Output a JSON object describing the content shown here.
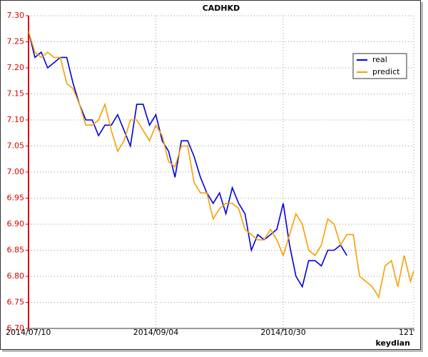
{
  "chart_data": {
    "type": "line",
    "title": "CADHKD",
    "watermark": "keydian",
    "x": [
      0,
      2,
      4,
      6,
      8,
      10,
      12,
      14,
      16,
      18,
      20,
      22,
      24,
      26,
      28,
      30,
      32,
      34,
      36,
      38,
      40,
      42,
      44,
      46,
      48,
      50,
      52,
      54,
      56,
      58,
      60,
      62,
      64,
      66,
      68,
      70,
      72,
      74,
      76,
      78,
      80,
      82,
      84,
      86,
      88,
      90,
      92,
      94,
      96,
      98,
      100,
      102,
      104,
      106,
      108,
      110,
      112,
      114,
      116,
      118,
      120,
      121
    ],
    "series": [
      {
        "name": "real",
        "color": "#0000dd",
        "values": [
          7.27,
          7.22,
          7.23,
          7.2,
          7.21,
          7.22,
          7.22,
          7.17,
          7.13,
          7.1,
          7.1,
          7.07,
          7.09,
          7.09,
          7.11,
          7.08,
          7.05,
          7.13,
          7.13,
          7.09,
          7.11,
          7.06,
          7.04,
          6.99,
          7.06,
          7.06,
          7.03,
          6.99,
          6.96,
          6.94,
          6.96,
          6.92,
          6.97,
          6.94,
          6.92,
          6.85,
          6.88,
          6.87,
          6.88,
          6.89,
          6.94,
          6.86,
          6.8,
          6.78,
          6.83,
          6.83,
          6.82,
          6.85,
          6.85,
          6.86,
          6.84,
          null,
          null,
          null,
          null,
          null,
          null,
          null,
          null,
          null,
          null,
          null
        ]
      },
      {
        "name": "predict",
        "color": "#f5a000",
        "values": [
          7.27,
          7.23,
          7.22,
          7.23,
          7.22,
          7.22,
          7.17,
          7.16,
          7.13,
          7.09,
          7.09,
          7.1,
          7.13,
          7.08,
          7.04,
          7.06,
          7.1,
          7.1,
          7.08,
          7.06,
          7.09,
          7.07,
          7.02,
          7.01,
          7.05,
          7.05,
          6.98,
          6.96,
          6.96,
          6.91,
          6.93,
          6.94,
          6.94,
          6.93,
          6.89,
          6.88,
          6.87,
          6.87,
          6.89,
          6.87,
          6.84,
          6.88,
          6.92,
          6.9,
          6.85,
          6.84,
          6.86,
          6.91,
          6.9,
          6.86,
          6.88,
          6.88,
          6.8,
          6.79,
          6.78,
          6.76,
          6.82,
          6.83,
          6.78,
          6.84,
          6.79,
          6.81
        ]
      }
    ],
    "xlim": [
      0,
      121
    ],
    "xticks": [
      {
        "value": 0,
        "label": "2014/07/10"
      },
      {
        "value": 40,
        "label": "2014/09/04"
      },
      {
        "value": 80,
        "label": "2014/10/30"
      },
      121
    ],
    "ylim": [
      6.7,
      7.3
    ],
    "yticks": [
      {
        "value": 6.7,
        "label": "6.70"
      },
      6.75,
      {
        "value": 6.8,
        "label": "6.80"
      },
      6.85,
      {
        "value": 6.9,
        "label": "6.90"
      },
      6.95,
      {
        "value": 7.0,
        "label": "7.00"
      },
      7.05,
      {
        "value": 7.1,
        "label": "7.10"
      },
      7.15,
      {
        "value": 7.2,
        "label": "7.20"
      },
      7.25,
      {
        "value": 7.3,
        "label": "7.30"
      }
    ],
    "grid": true,
    "legend": "upper right"
  }
}
